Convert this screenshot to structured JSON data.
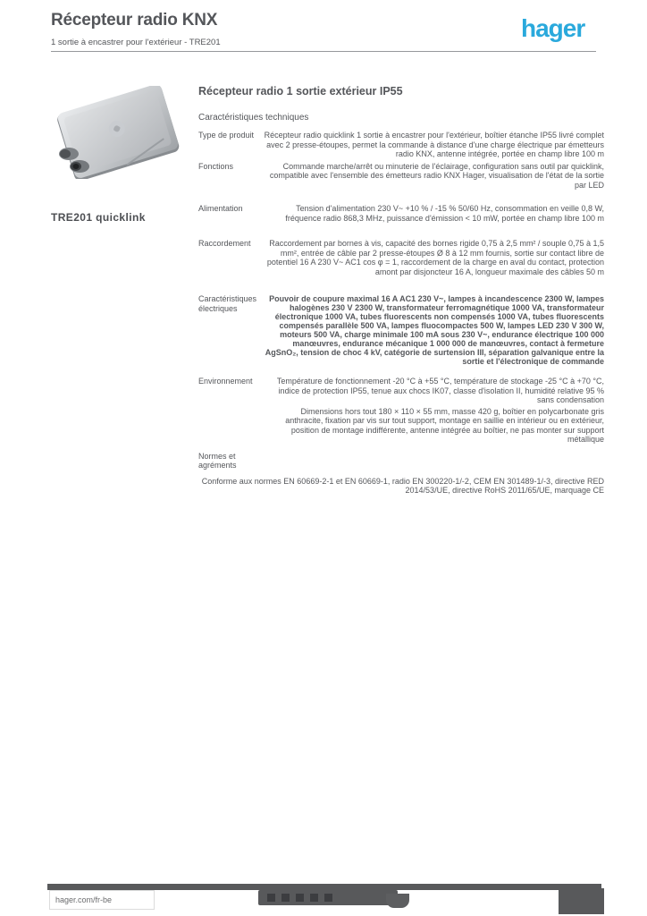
{
  "colors": {
    "text": "#54565a",
    "logo_blue": "#2aa9dc",
    "footer_gray": "#58595b",
    "product_body_light": "#dfe1e3",
    "product_body_dark": "#a7abaf"
  },
  "header": {
    "title": "Récepteur radio KNX",
    "subtitle": "1 sortie à encastrer pour l'extérieur - TRE201",
    "logo": "hager"
  },
  "product": {
    "reference": "TRE201 quicklink",
    "photo": "outdoor-radio-receiver-enclosure"
  },
  "main": {
    "title": "Récepteur radio 1 sortie extérieur IP55",
    "section_heading": "Caractéristiques techniques",
    "rows": [
      {
        "label": "Type de produit",
        "value": "Récepteur radio quicklink 1 sortie à encastrer pour l'extérieur, boîtier étanche IP55 livré complet avec 2 presse-étoupes, permet la commande à distance d'une charge électrique par émetteurs radio KNX, antenne intégrée, portée en champ libre 100 m"
      },
      {
        "label": "Fonctions",
        "value": "Commande marche/arrêt ou minuterie de l'éclairage, configuration sans outil par quicklink, compatible avec l'ensemble des émetteurs radio KNX Hager, visualisation de l'état de la sortie par LED"
      },
      {
        "label": "Alimentation",
        "value": "Tension d'alimentation 230 V~ +10 % / -15 % 50/60 Hz, consommation en veille 0,8 W, fréquence radio 868,3 MHz, puissance d'émission < 10 mW, portée en champ libre 100 m"
      },
      {
        "label": "Raccordement",
        "value": "Raccordement par bornes à vis, capacité des bornes rigide 0,75 à 2,5 mm² / souple 0,75 à 1,5 mm², entrée de câble par 2 presse-étoupes Ø 8 à 12 mm fournis, sortie sur contact libre de potentiel 16 A 230 V~ AC1 cos φ = 1, raccordement de la charge en aval du contact, protection amont par disjoncteur 16 A, longueur maximale des câbles 50 m"
      },
      {
        "label": "Caractéristiques électriques",
        "value": "Pouvoir de coupure maximal 16 A AC1 230 V~, lampes à incandescence 2300 W, lampes halogènes 230 V 2300 W, transformateur ferromagnétique 1000 VA, transformateur électronique 1000 VA, tubes fluorescents non compensés 1000 VA, tubes fluorescents compensés parallèle 500 VA, lampes fluocompactes 500 W, lampes LED 230 V 300 W, moteurs 500 VA, charge minimale 100 mA sous 230 V~, endurance électrique 100 000 manœuvres, endurance mécanique 1 000 000 de manœuvres, contact à fermeture AgSnO₂, tension de choc 4 kV, catégorie de surtension III, séparation galvanique entre la sortie et l'électronique de commande"
      },
      {
        "label": "Environnement",
        "value": "Température de fonctionnement -20 °C à +55 °C, température de stockage -25 °C à +70 °C, indice de protection IP55, tenue aux chocs IK07, classe d'isolation II, humidité relative 95 % sans condensation"
      },
      {
        "label": "",
        "value": "Dimensions hors tout 180 × 110 × 55 mm, masse 420 g, boîtier en polycarbonate gris anthracite, fixation par vis sur tout support, montage en saillie en intérieur ou en extérieur, position de montage indifférente, antenne intégrée au boîtier, ne pas monter sur support métallique"
      },
      {
        "label": "Normes et agréments",
        "value": "Conforme aux normes EN 60669-2-1 et EN 60669-1, radio EN 300220-1/-2, CEM EN 301489-1/-3, directive RED 2014/53/UE, directive RoHS 2011/65/UE, marquage CE"
      }
    ]
  },
  "footer": {
    "website": "hager.com/fr-be",
    "social_icons": [
      "facebook",
      "twitter",
      "youtube",
      "linkedin",
      "instagram"
    ]
  }
}
